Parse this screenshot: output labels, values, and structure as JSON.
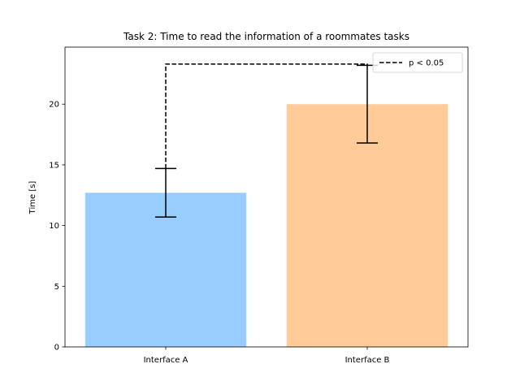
{
  "chart_data": {
    "type": "bar",
    "title": "Task 2: Time to read the information of a roommates tasks",
    "xlabel": "",
    "ylabel": "Time [s]",
    "categories": [
      "Interface A",
      "Interface B"
    ],
    "values": [
      12.7,
      20.0
    ],
    "errors": [
      2.0,
      3.2
    ],
    "colors": [
      "#99ccff",
      "#ffcc99"
    ],
    "ylim": [
      0,
      24.7
    ],
    "yticks": [
      0,
      5,
      10,
      15,
      20
    ],
    "grid": false,
    "significance": {
      "label": "p < 0.05",
      "level": 23.3,
      "style": "dashed"
    },
    "legend": {
      "placement": "top-right",
      "entries": [
        "p < 0.05"
      ]
    }
  }
}
